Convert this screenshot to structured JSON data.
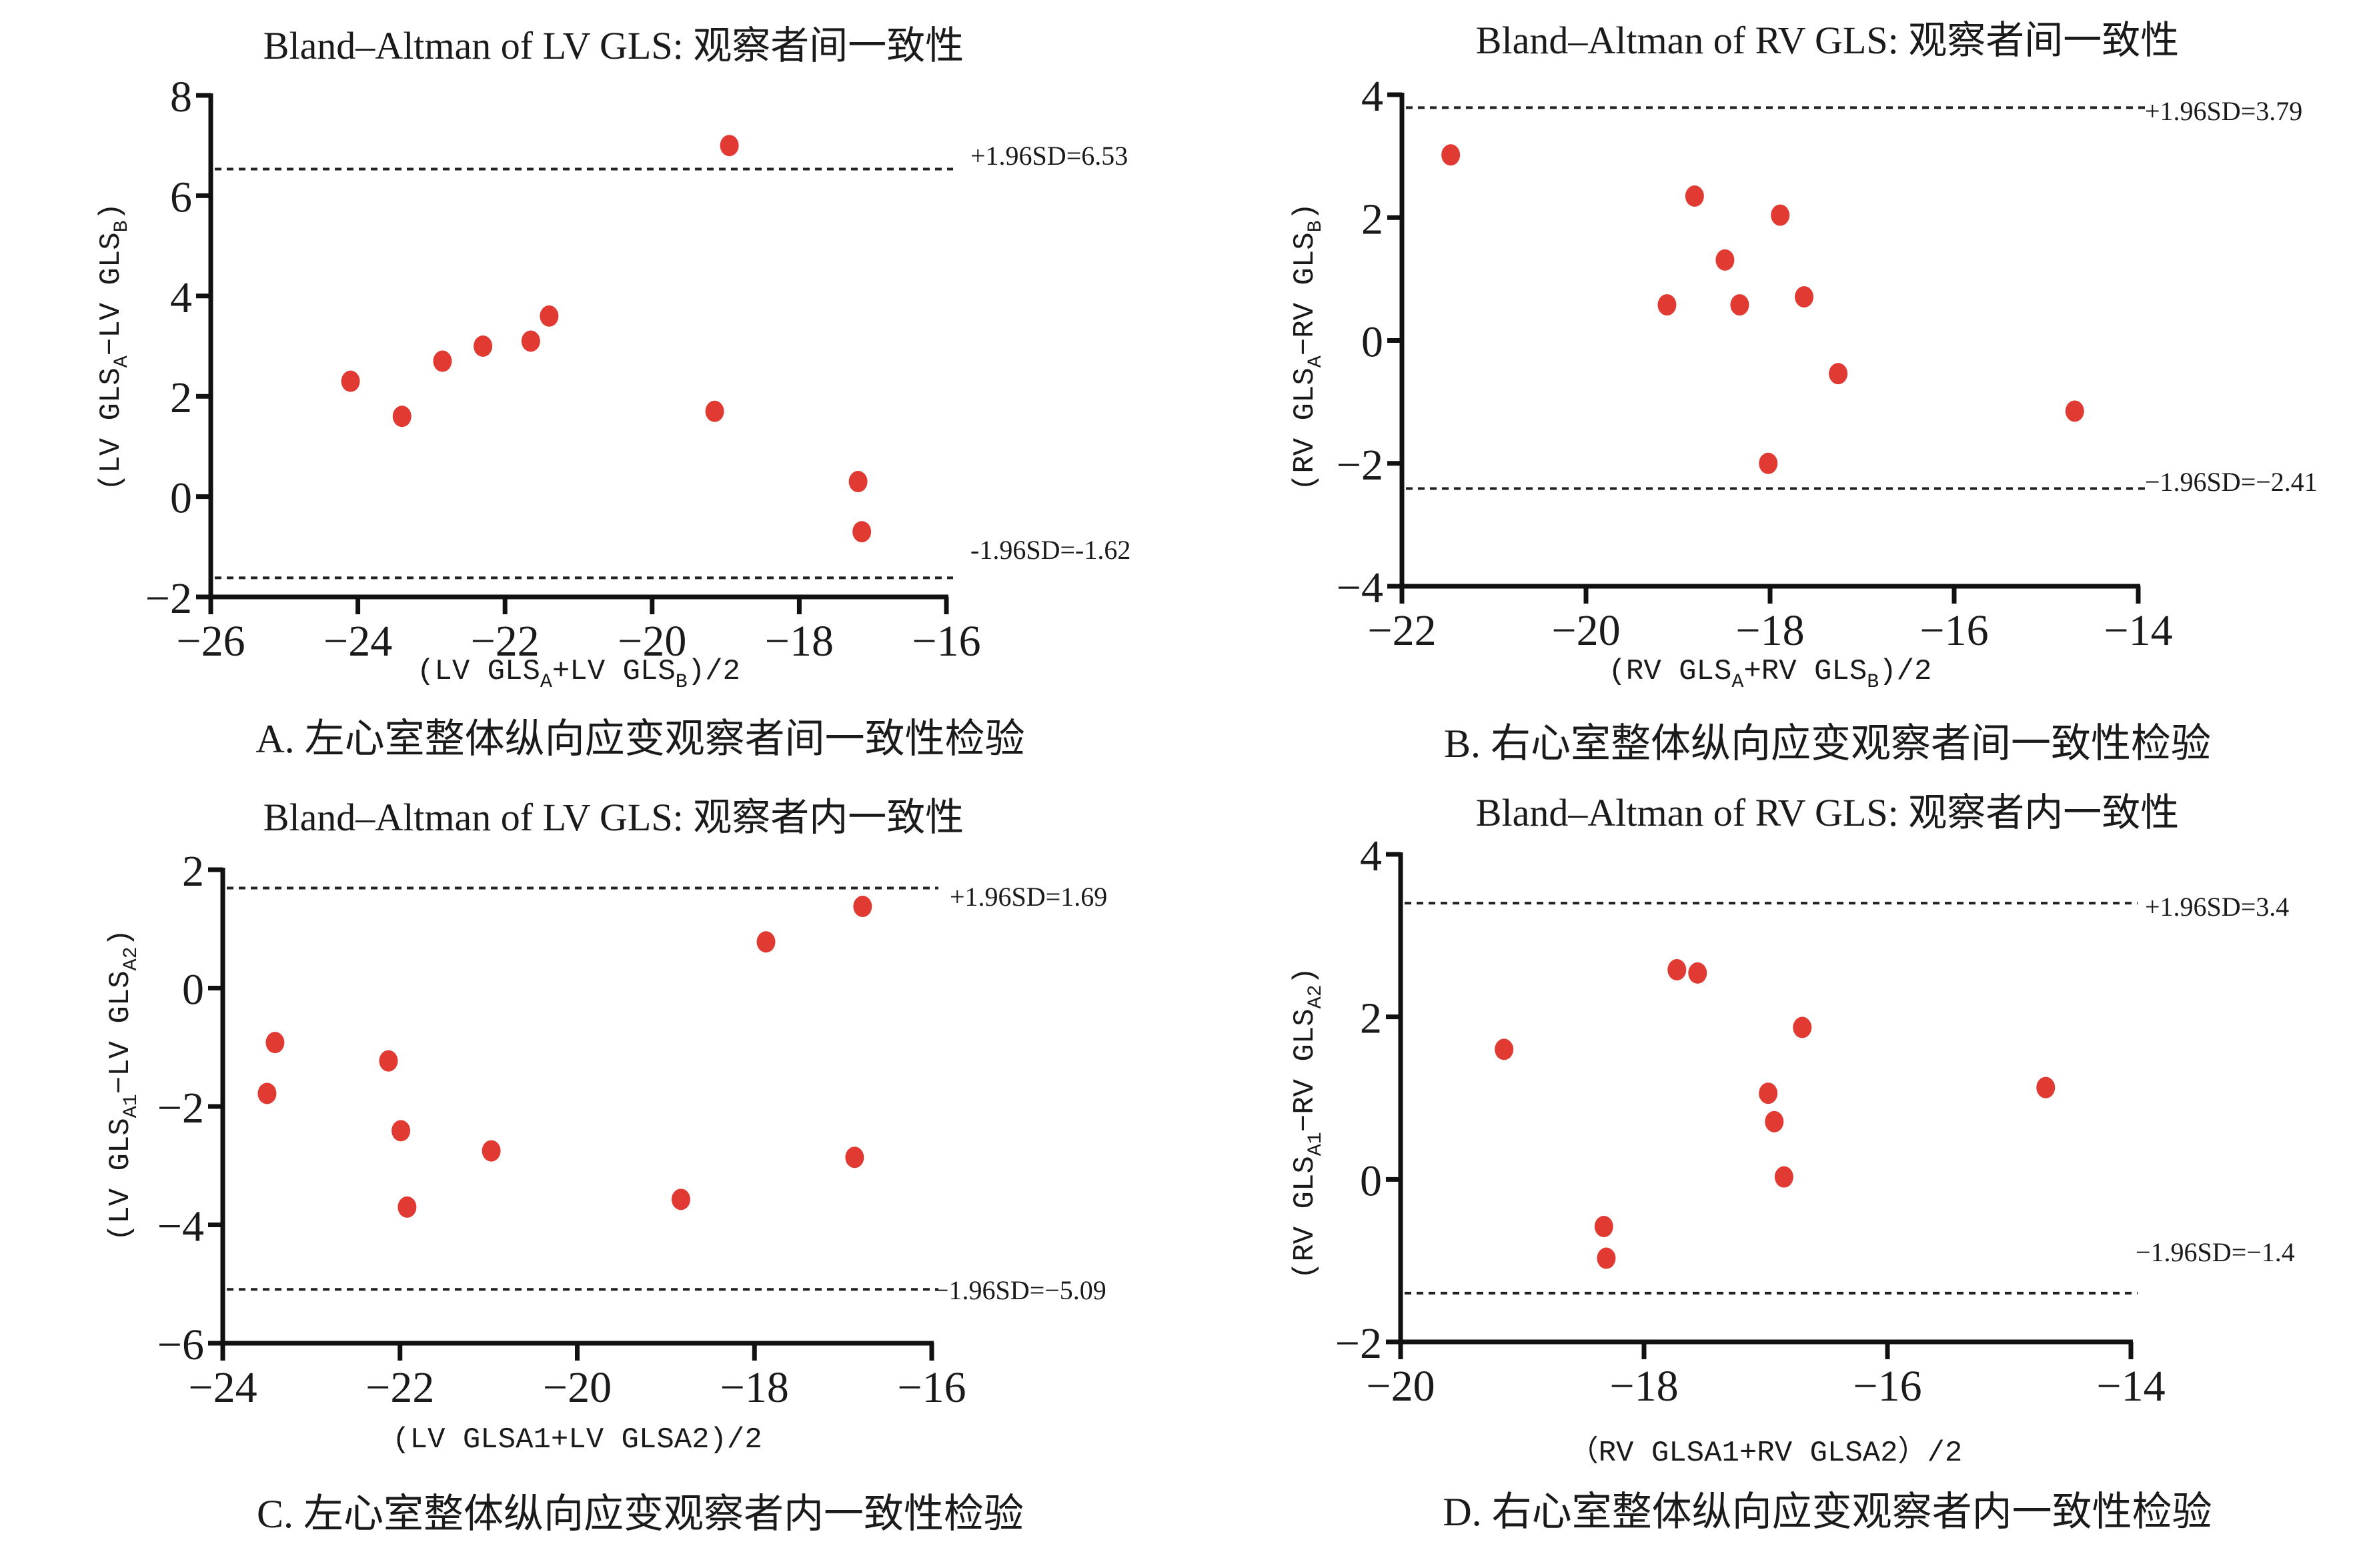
{
  "colors": {
    "point": "#e03a33",
    "axis": "#111111",
    "text": "#1a1a1a"
  },
  "chart_data": [
    {
      "id": "A",
      "type": "scatter",
      "title": "Bland–Altman of LV GLS: 观察者间一致性",
      "xlabel_parts": [
        "(LV GLS",
        "A",
        "+LV GLS",
        "B",
        ")/2"
      ],
      "ylabel_parts": [
        "(LV GLS",
        "A",
        "−LV GLS",
        "B",
        ")"
      ],
      "caption": "A. 左心室整体纵向应变观察者间一致性检验",
      "xlim": [
        -26,
        -16
      ],
      "ylim": [
        -2,
        8
      ],
      "xticks": [
        -26,
        -24,
        -22,
        -20,
        -18,
        -16
      ],
      "xtick_labels": [
        "−26",
        "−24",
        "−22",
        "−20",
        "−18",
        "−16"
      ],
      "yticks": [
        -2,
        0,
        2,
        4,
        6,
        8
      ],
      "ytick_labels": [
        "−2",
        "0",
        "2",
        "4",
        "6",
        "8"
      ],
      "upper_loa": 6.53,
      "lower_loa": -1.62,
      "upper_label": "+1.96SD=6.53",
      "lower_label": "-1.96SD=-1.62",
      "points": [
        {
          "x": -24.1,
          "y": 2.3
        },
        {
          "x": -23.4,
          "y": 1.6
        },
        {
          "x": -22.85,
          "y": 2.7
        },
        {
          "x": -22.3,
          "y": 3.0
        },
        {
          "x": -21.65,
          "y": 3.1
        },
        {
          "x": -21.4,
          "y": 3.6
        },
        {
          "x": -18.95,
          "y": 7.0
        },
        {
          "x": -19.15,
          "y": 1.7
        },
        {
          "x": -17.2,
          "y": 0.3
        },
        {
          "x": -17.15,
          "y": -0.7
        }
      ]
    },
    {
      "id": "B",
      "type": "scatter",
      "title": "Bland–Altman of RV GLS: 观察者间一致性",
      "xlabel_parts": [
        "(RV GLS",
        "A",
        "+RV GLS",
        "B",
        ")/2"
      ],
      "ylabel_parts": [
        "(RV GLS",
        "A",
        "−RV GLS",
        "B",
        ")"
      ],
      "caption": "B. 右心室整体纵向应变观察者间一致性检验",
      "xlim": [
        -22,
        -14
      ],
      "ylim": [
        -4,
        4
      ],
      "xticks": [
        -22,
        -20,
        -18,
        -16,
        -14
      ],
      "xtick_labels": [
        "−22",
        "−20",
        "−18",
        "−16",
        "−14"
      ],
      "yticks": [
        -4,
        -2,
        0,
        2,
        4
      ],
      "ytick_labels": [
        "−4",
        "−2",
        "0",
        "2",
        "4"
      ],
      "upper_loa": 3.79,
      "lower_loa": -2.41,
      "upper_label": "+1.96SD=3.79",
      "lower_label": "−1.96SD=−2.41",
      "points": [
        {
          "x": -21.47,
          "y": 3.02
        },
        {
          "x": -18.82,
          "y": 2.35
        },
        {
          "x": -17.89,
          "y": 2.04
        },
        {
          "x": -18.49,
          "y": 1.31
        },
        {
          "x": -19.12,
          "y": 0.58
        },
        {
          "x": -18.33,
          "y": 0.58
        },
        {
          "x": -17.63,
          "y": 0.71
        },
        {
          "x": -17.26,
          "y": -0.54
        },
        {
          "x": -14.69,
          "y": -1.15
        },
        {
          "x": -18.02,
          "y": -2.0
        }
      ]
    },
    {
      "id": "C",
      "type": "scatter",
      "title": "Bland–Altman of LV GLS: 观察者内一致性",
      "xlabel_parts": [
        "(LV GLSA1+LV GLSA2)/2"
      ],
      "ylabel_parts": [
        "(LV GLS",
        "A1",
        "−LV GLS",
        "A2",
        ")"
      ],
      "caption": "C. 左心室整体纵向应变观察者内一致性检验",
      "xlim": [
        -24,
        -16
      ],
      "ylim": [
        -6,
        2
      ],
      "xticks": [
        -24,
        -22,
        -20,
        -18,
        -16
      ],
      "xtick_labels": [
        "−24",
        "−22",
        "−20",
        "−18",
        "−16"
      ],
      "yticks": [
        -6,
        -4,
        -2,
        0,
        2
      ],
      "ytick_labels": [
        "−6",
        "−4",
        "−2",
        "0",
        "2"
      ],
      "upper_loa": 1.69,
      "lower_loa": -5.09,
      "upper_label": "+1.96SD=1.69",
      "lower_label": "−1.96SD=−5.09",
      "points": [
        {
          "x": -16.78,
          "y": 1.38
        },
        {
          "x": -17.87,
          "y": 0.78
        },
        {
          "x": -23.41,
          "y": -0.92
        },
        {
          "x": -22.13,
          "y": -1.23
        },
        {
          "x": -23.5,
          "y": -1.78
        },
        {
          "x": -21.99,
          "y": -2.41
        },
        {
          "x": -20.97,
          "y": -2.75
        },
        {
          "x": -21.92,
          "y": -3.7
        },
        {
          "x": -18.83,
          "y": -3.57
        },
        {
          "x": -16.87,
          "y": -2.86
        }
      ]
    },
    {
      "id": "D",
      "type": "scatter",
      "title": "Bland–Altman of RV GLS: 观察者内一致性",
      "xlabel_parts": [
        "（RV GLSA1+RV GLSA2）/2"
      ],
      "ylabel_parts": [
        "(RV GLS",
        "A1",
        "−RV GLS",
        "A2",
        ")"
      ],
      "caption": "D. 右心室整体纵向应变观察者内一致性检验",
      "xlim": [
        -20,
        -14
      ],
      "ylim": [
        -2,
        4
      ],
      "xticks": [
        -20,
        -18,
        -16,
        -14
      ],
      "xtick_labels": [
        "−20",
        "−18",
        "−16",
        "−14"
      ],
      "yticks": [
        -2,
        0,
        2,
        4
      ],
      "ytick_labels": [
        "−2",
        "0",
        "2",
        "4"
      ],
      "upper_loa": 3.4,
      "lower_loa": -1.4,
      "upper_label": "+1.96SD=3.4",
      "lower_label": "−1.96SD=−1.4",
      "points": [
        {
          "x": -19.15,
          "y": 1.6
        },
        {
          "x": -17.73,
          "y": 2.58
        },
        {
          "x": -17.56,
          "y": 2.54
        },
        {
          "x": -16.7,
          "y": 1.87
        },
        {
          "x": -16.98,
          "y": 1.06
        },
        {
          "x": -16.93,
          "y": 0.71
        },
        {
          "x": -16.85,
          "y": 0.03
        },
        {
          "x": -14.7,
          "y": 1.13
        },
        {
          "x": -18.33,
          "y": -0.58
        },
        {
          "x": -18.31,
          "y": -0.97
        }
      ]
    }
  ]
}
